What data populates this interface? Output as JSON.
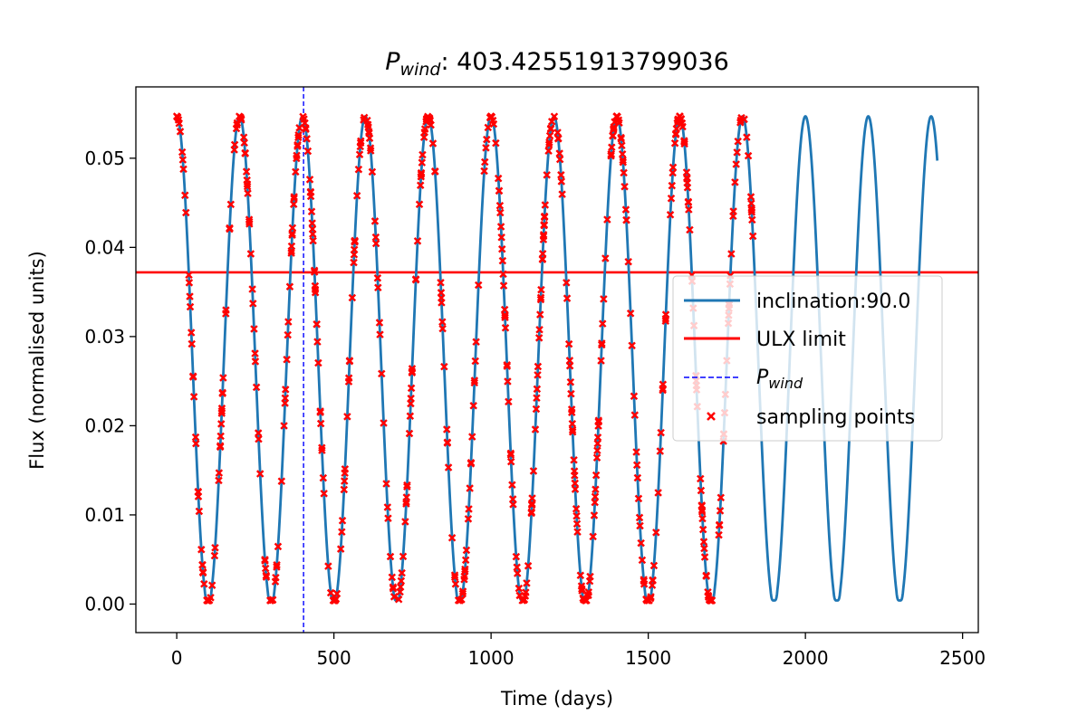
{
  "chart_data": {
    "type": "line",
    "title": {
      "symbol": "P",
      "subscript": "wind",
      "value_text": ": 403.42551913799036"
    },
    "xlabel": "Time (days)",
    "ylabel": "Flux (normalised units)",
    "xlim": [
      -130,
      2550
    ],
    "ylim": [
      -0.0032,
      0.058
    ],
    "x_ticks": [
      0,
      500,
      1000,
      1500,
      2000,
      2500
    ],
    "y_ticks": [
      0.0,
      0.01,
      0.02,
      0.03,
      0.04,
      0.05
    ],
    "y_tick_labels": [
      "0.00",
      "0.01",
      "0.02",
      "0.03",
      "0.04",
      "0.05"
    ],
    "grid": false,
    "legend_position": "center-right",
    "colors": {
      "curve": "#1f77b4",
      "ulx": "#ff0000",
      "pwind": "#0000ff",
      "sampling": "#ff0000"
    },
    "series": [
      {
        "key": "curve",
        "name": "inclination:90.0",
        "kind": "line",
        "period_days": 200,
        "x_range": [
          0,
          2420
        ],
        "flux_max": 0.0547,
        "flux_min": 0.0,
        "flux_trough_plateau": 0.0016,
        "peak_phase_days": 0
      },
      {
        "key": "ulx",
        "name": "ULX limit",
        "kind": "hline",
        "y": 0.0372
      },
      {
        "key": "pwind",
        "name": "P",
        "name_sub": "wind",
        "kind": "vline",
        "x": 403.42551913799036
      },
      {
        "key": "sampling",
        "name": "sampling points",
        "kind": "scatter",
        "x_range": [
          0,
          1840
        ],
        "count": 640,
        "seed": 7
      }
    ]
  }
}
